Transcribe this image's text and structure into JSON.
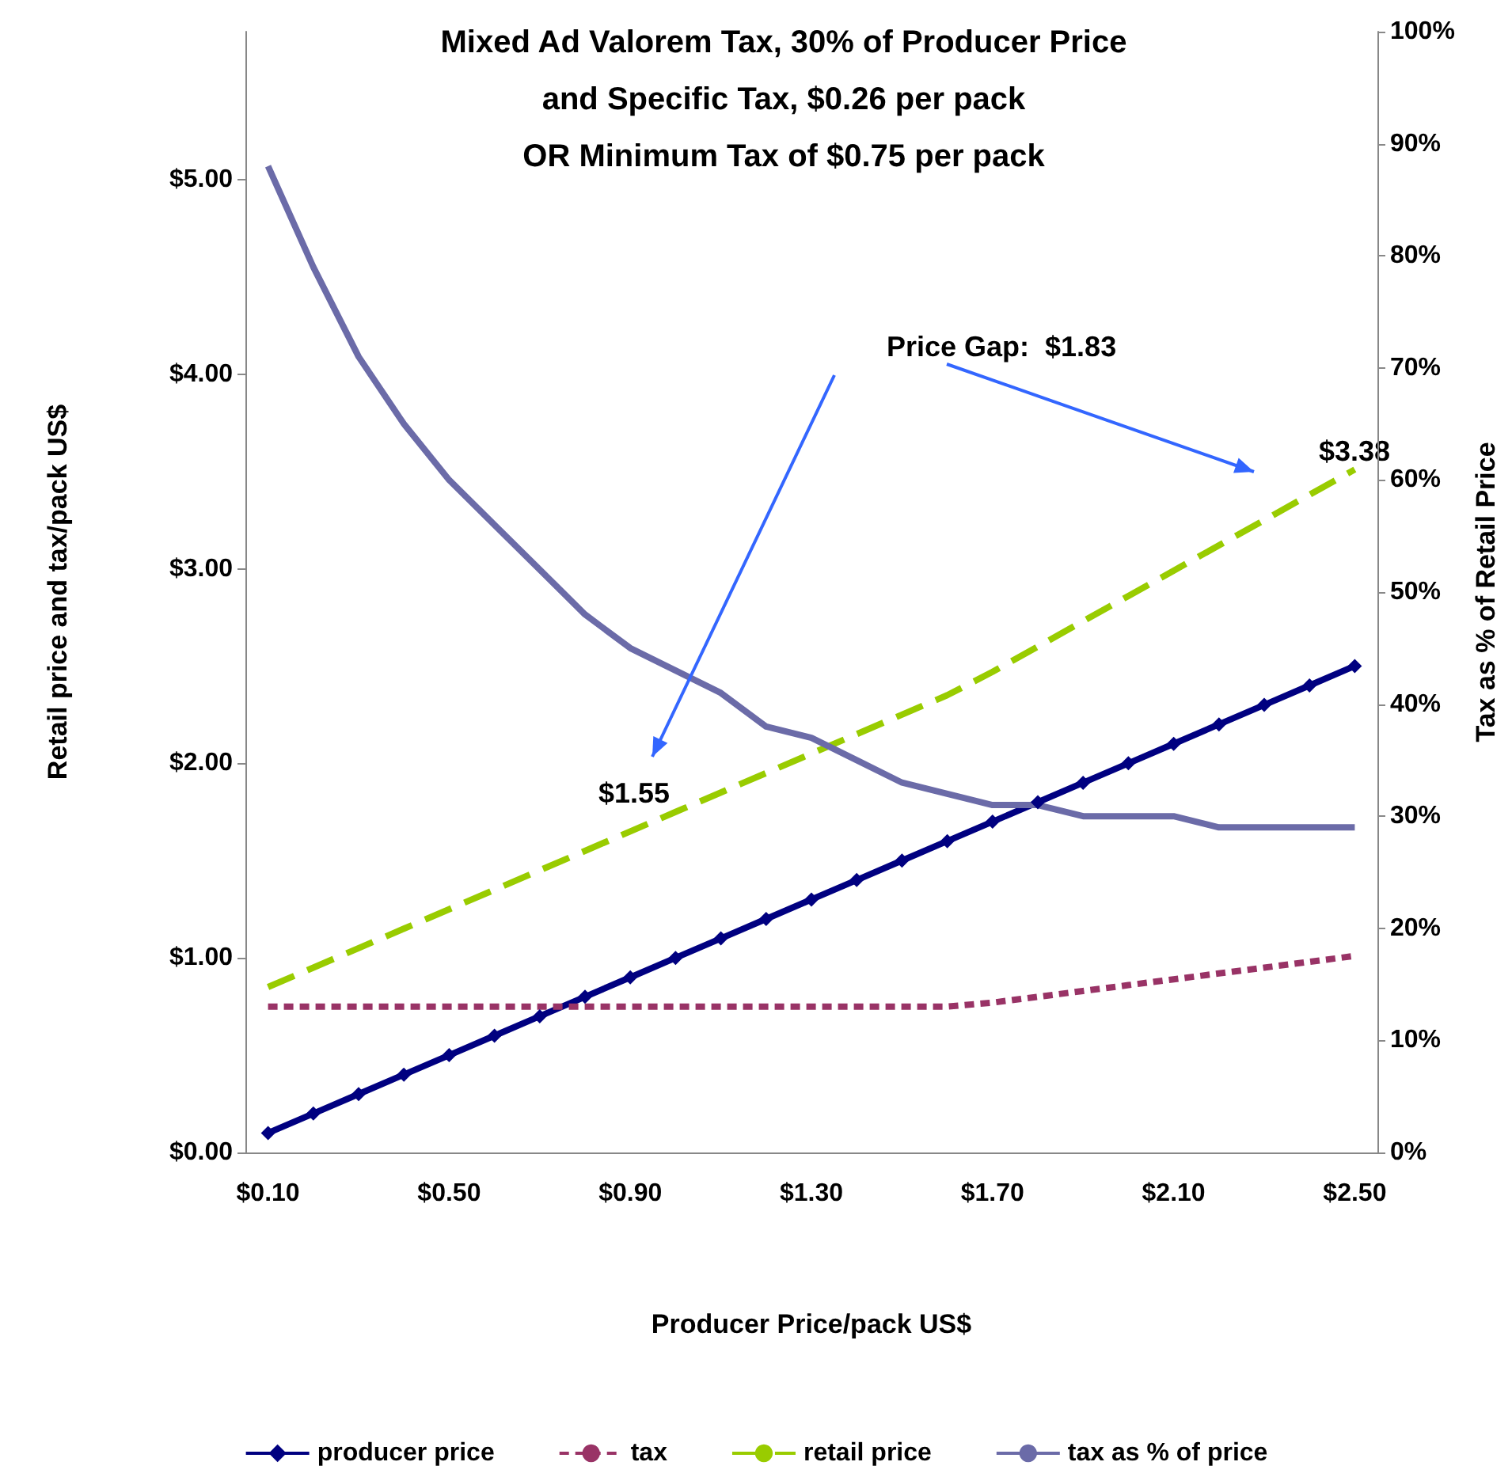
{
  "chart_data": {
    "type": "line",
    "title": "Mixed Ad Valorem Tax, 30% of Producer Price\nand Specific Tax, $0.26 per pack\nOR Minimum Tax of $0.75 per pack",
    "xlabel": "Producer Price/pack US$",
    "ylabel": "Retail price and tax/pack US$",
    "y2label": "Tax as % of Retail Price",
    "categories": [
      "$0.10",
      null,
      null,
      null,
      "$0.50",
      null,
      null,
      null,
      "$0.90",
      null,
      null,
      null,
      "$1.30",
      null,
      null,
      null,
      "$1.70",
      null,
      null,
      null,
      "$2.10",
      null,
      null,
      null,
      "$2.50"
    ],
    "series": [
      {
        "name": "producer price",
        "color": "#000080",
        "marker": "diamond",
        "line_style": "solid",
        "values": [
          0.1,
          0.2,
          0.3,
          0.4,
          0.5,
          0.6,
          0.7,
          0.8,
          0.9,
          1.0,
          1.1,
          1.2,
          1.3,
          1.4,
          1.5,
          1.6,
          1.7,
          1.8,
          1.9,
          2.0,
          2.1,
          2.2,
          2.3,
          2.4,
          2.5
        ]
      },
      {
        "name": "tax",
        "color": "#993366",
        "marker": "none",
        "line_style": "dotted",
        "values": [
          0.75,
          0.75,
          0.75,
          0.75,
          0.75,
          0.75,
          0.75,
          0.75,
          0.75,
          0.75,
          0.75,
          0.75,
          0.75,
          0.75,
          0.75,
          0.75,
          0.77,
          0.8,
          0.83,
          0.86,
          0.89,
          0.92,
          0.95,
          0.98,
          1.01
        ]
      },
      {
        "name": "retail price",
        "color": "#99cc00",
        "marker": "none",
        "line_style": "dashed",
        "values": [
          0.85,
          0.95,
          1.05,
          1.15,
          1.25,
          1.35,
          1.45,
          1.55,
          1.65,
          1.75,
          1.85,
          1.95,
          2.05,
          2.15,
          2.25,
          2.35,
          2.47,
          2.6,
          2.73,
          2.86,
          2.99,
          3.12,
          3.25,
          3.38,
          3.51
        ]
      },
      {
        "name": "tax as % of price",
        "color": "#6b6ba8",
        "marker": "none",
        "line_style": "solid",
        "axis": "y2",
        "values": [
          88,
          79,
          71,
          65,
          60,
          56,
          52,
          48,
          45,
          43,
          41,
          38,
          37,
          35,
          33,
          32,
          31,
          31,
          30,
          30,
          30,
          29,
          29,
          29,
          29
        ]
      }
    ],
    "ylim": [
      0,
      5.76
    ],
    "yticks": [
      {
        "value": 0,
        "label": "$0.00"
      },
      {
        "value": 1,
        "label": "$1.00"
      },
      {
        "value": 2,
        "label": "$2.00"
      },
      {
        "value": 3,
        "label": "$3.00"
      },
      {
        "value": 4,
        "label": "$4.00"
      },
      {
        "value": 5,
        "label": "$5.00"
      }
    ],
    "y2lim": [
      0,
      100
    ],
    "y2ticks": [
      {
        "value": 0,
        "label": "0%"
      },
      {
        "value": 10,
        "label": "10%"
      },
      {
        "value": 20,
        "label": "20%"
      },
      {
        "value": 30,
        "label": "30%"
      },
      {
        "value": 40,
        "label": "40%"
      },
      {
        "value": 50,
        "label": "50%"
      },
      {
        "value": 60,
        "label": "60%"
      },
      {
        "value": 70,
        "label": "70%"
      },
      {
        "value": 80,
        "label": "80%"
      },
      {
        "value": 90,
        "label": "90%"
      },
      {
        "value": 100,
        "label": "100%"
      }
    ],
    "annotations": [
      "Price Gap:  $1.83",
      "$1.55",
      "$3.38"
    ],
    "grid": false,
    "legend": "bottom"
  }
}
